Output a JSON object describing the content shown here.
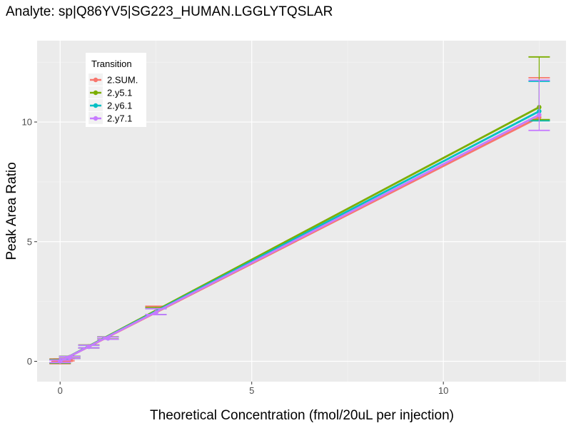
{
  "chart_data": {
    "type": "line",
    "title": "Analyte: sp|Q86YV5|SG223_HUMAN.LGGLYTQSLAR",
    "xlabel": "Theoretical Concentration (fmol/20uL per injection)",
    "ylabel": "Peak Area Ratio",
    "xlim": [
      -0.6,
      13.2
    ],
    "ylim": [
      -0.85,
      13.4
    ],
    "xticks": [
      0,
      5,
      10
    ],
    "xtick_labels": [
      "0",
      "5",
      "10"
    ],
    "yticks": [
      0,
      5,
      10
    ],
    "ytick_labels": [
      "0",
      "5",
      "10"
    ],
    "grid": true,
    "legend": {
      "title": "Transition",
      "position": "top-left"
    },
    "x": [
      0,
      0.05,
      0.1,
      0.25,
      0.5,
      0.75,
      1.25,
      2.5,
      12.5
    ],
    "series": [
      {
        "name": "2.SUM.",
        "color": "#F8766D",
        "points": [
          {
            "x": 0,
            "y": 0.0,
            "lo": -0.1,
            "hi": 0.1
          },
          {
            "x": 0.05,
            "y": 0.03,
            "lo": 0.0,
            "hi": 0.06
          },
          {
            "x": 0.1,
            "y": 0.06,
            "lo": 0.02,
            "hi": 0.1
          },
          {
            "x": 0.25,
            "y": 0.17,
            "lo": 0.13,
            "hi": 0.21
          },
          {
            "x": 0.75,
            "y": 0.62,
            "lo": 0.56,
            "hi": 0.68
          },
          {
            "x": 1.25,
            "y": 0.97,
            "lo": 0.93,
            "hi": 1.02
          },
          {
            "x": 2.5,
            "y": 2.05,
            "lo": 1.95,
            "hi": 2.3
          },
          {
            "x": 12.5,
            "y": 10.2,
            "lo": 10.05,
            "hi": 11.85
          }
        ],
        "fit": [
          0,
          10.2
        ]
      },
      {
        "name": "2.y5.1",
        "color": "#7CAE00",
        "points": [
          {
            "x": 0,
            "y": 0.0,
            "lo": -0.08,
            "hi": 0.08
          },
          {
            "x": 0.25,
            "y": 0.17,
            "lo": 0.13,
            "hi": 0.21
          },
          {
            "x": 0.75,
            "y": 0.62,
            "lo": 0.56,
            "hi": 0.68
          },
          {
            "x": 1.25,
            "y": 0.97,
            "lo": 0.93,
            "hi": 1.02
          },
          {
            "x": 2.5,
            "y": 2.05,
            "lo": 1.95,
            "hi": 2.25
          },
          {
            "x": 12.5,
            "y": 10.62,
            "lo": 10.1,
            "hi": 12.72
          }
        ],
        "fit": [
          0,
          10.62
        ]
      },
      {
        "name": "2.y6.1",
        "color": "#00BFC4",
        "points": [
          {
            "x": 0,
            "y": 0.0,
            "lo": -0.06,
            "hi": 0.06
          },
          {
            "x": 0.25,
            "y": 0.16,
            "lo": 0.12,
            "hi": 0.2
          },
          {
            "x": 0.75,
            "y": 0.61,
            "lo": 0.56,
            "hi": 0.67
          },
          {
            "x": 1.25,
            "y": 0.96,
            "lo": 0.92,
            "hi": 1.01
          },
          {
            "x": 2.5,
            "y": 2.02,
            "lo": 1.95,
            "hi": 2.2
          },
          {
            "x": 12.5,
            "y": 10.45,
            "lo": 10.05,
            "hi": 11.7
          }
        ],
        "fit": [
          0,
          10.45
        ]
      },
      {
        "name": "2.y7.1",
        "color": "#C77CFF",
        "points": [
          {
            "x": 0,
            "y": 0.0,
            "lo": -0.05,
            "hi": 0.05
          },
          {
            "x": 0.25,
            "y": 0.16,
            "lo": 0.12,
            "hi": 0.2
          },
          {
            "x": 0.75,
            "y": 0.61,
            "lo": 0.56,
            "hi": 0.67
          },
          {
            "x": 1.25,
            "y": 0.96,
            "lo": 0.92,
            "hi": 1.01
          },
          {
            "x": 2.5,
            "y": 2.02,
            "lo": 1.95,
            "hi": 2.2
          },
          {
            "x": 12.5,
            "y": 10.3,
            "lo": 9.65,
            "hi": 11.75
          }
        ],
        "fit": [
          0,
          10.3
        ]
      }
    ]
  }
}
